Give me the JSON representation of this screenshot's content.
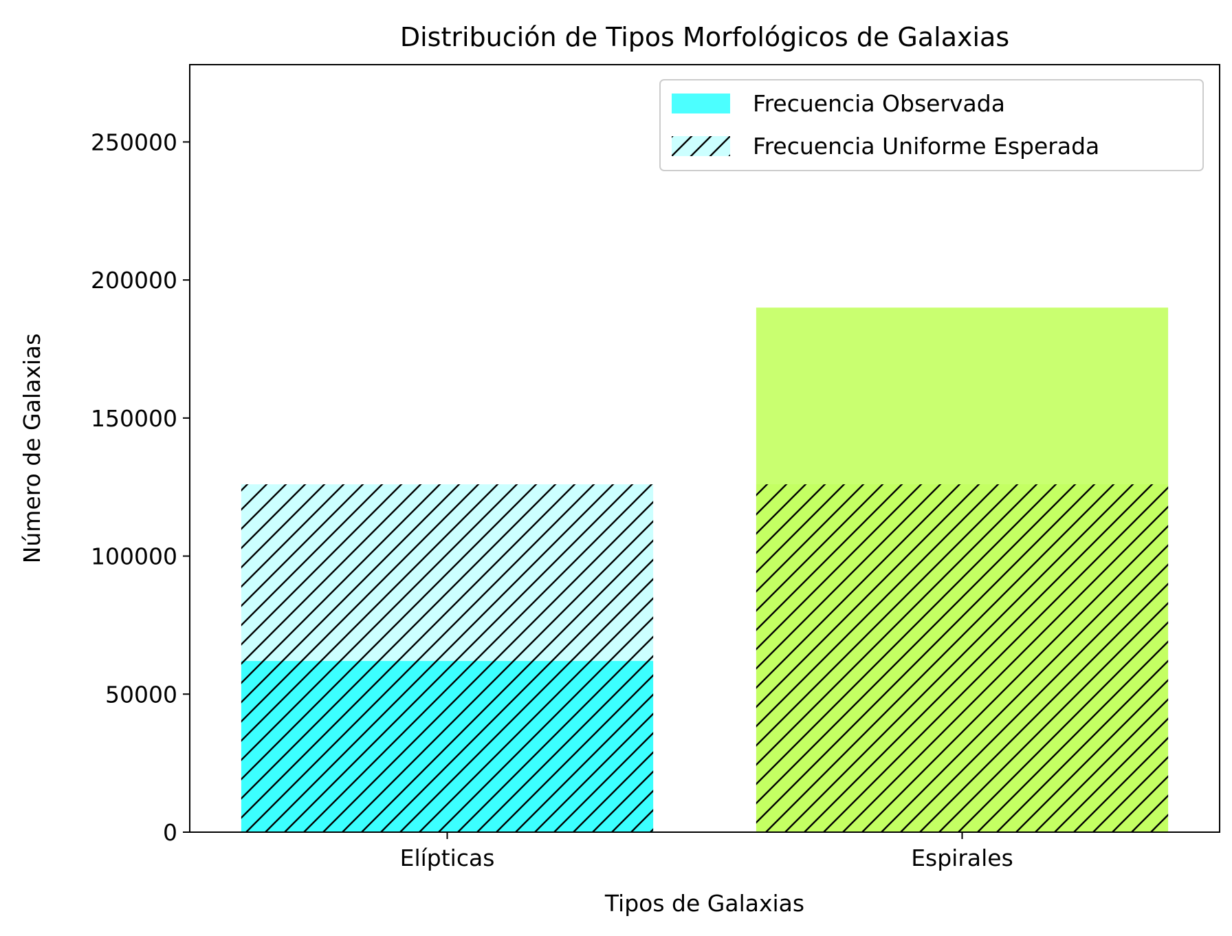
{
  "chart_data": {
    "type": "bar",
    "title": "Distribución de Tipos Morfológicos de Galaxias",
    "xlabel": "Tipos de Galaxias",
    "ylabel": "Número de Galaxias",
    "categories": [
      "Elípticas",
      "Espirales"
    ],
    "series": [
      {
        "name": "Frecuencia Observada",
        "values": [
          62000,
          190000
        ],
        "colors": [
          "#00ffff",
          "#b2ff33"
        ],
        "alpha": 0.7,
        "hatch": false
      },
      {
        "name": "Frecuencia Uniforme Esperada",
        "values": [
          126000,
          126000
        ],
        "colors": [
          "#00ffff",
          "#b2ff33"
        ],
        "alpha": 0.2,
        "hatch": true
      }
    ],
    "ylim": [
      0,
      278000
    ],
    "yticks": [
      0,
      50000,
      100000,
      150000,
      200000,
      250000
    ],
    "ytick_labels": [
      "0",
      "50000",
      "100000",
      "150000",
      "200000",
      "250000"
    ],
    "grid": false,
    "legend_position": "top-right"
  }
}
